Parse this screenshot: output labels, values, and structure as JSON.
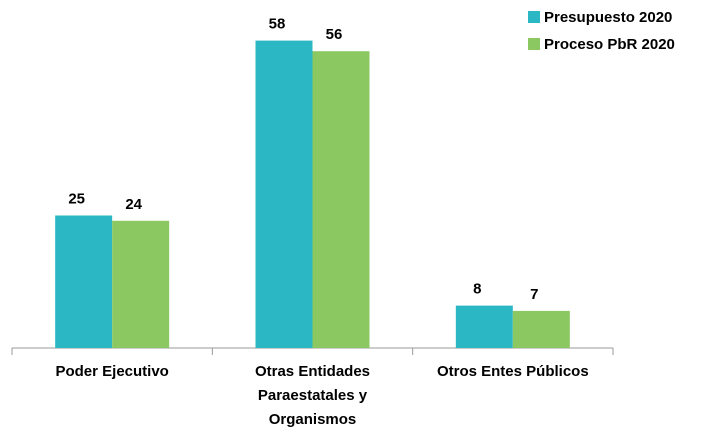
{
  "chart_data": {
    "type": "bar",
    "categories": [
      "Poder Ejecutivo",
      "Otras Entidades Paraestatales y Organismos",
      "Otros Entes Públicos"
    ],
    "series": [
      {
        "name": "Presupuesto 2020",
        "color": "#2bb8c4",
        "values": [
          25,
          58,
          8
        ]
      },
      {
        "name": "Proceso PbR 2020",
        "color": "#8cc862",
        "values": [
          24,
          56,
          7
        ]
      }
    ],
    "legend": "top-right"
  }
}
